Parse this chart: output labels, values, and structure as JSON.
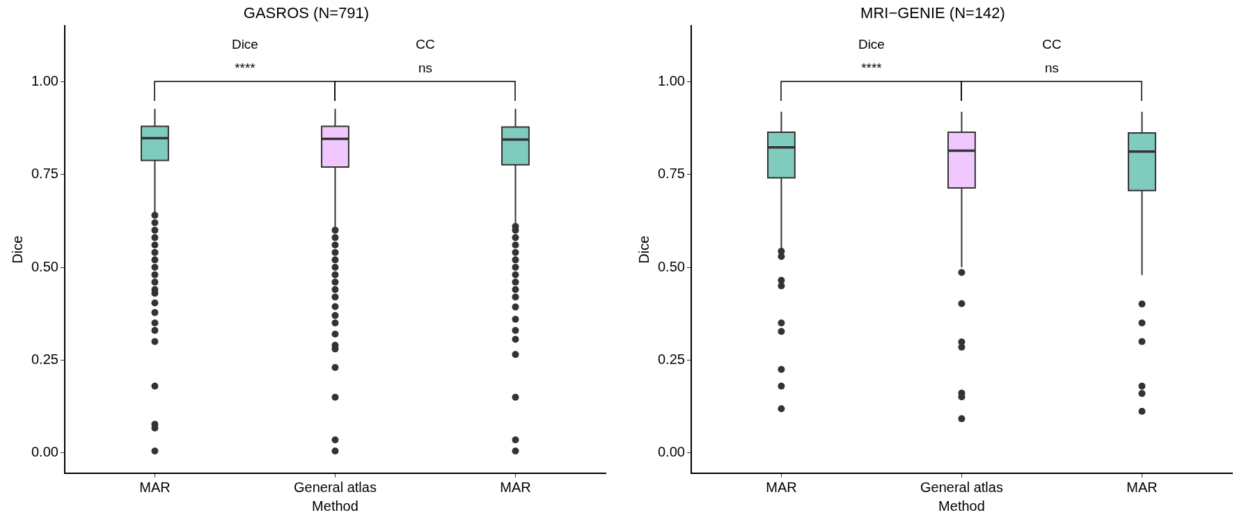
{
  "chart_data": [
    {
      "type": "box",
      "title": "GASROS (N=791)",
      "xlabel": "Method",
      "ylabel": "Dice",
      "categories": [
        "MAR",
        "General atlas",
        "MAR"
      ],
      "colors": [
        "#7fcbbe",
        "#f0c8ff",
        "#7fcbbe"
      ],
      "boxes": [
        {
          "low": 0.645,
          "q1": 0.788,
          "median": 0.848,
          "q3": 0.88,
          "high": 0.927,
          "outliers": [
            0.64,
            0.62,
            0.6,
            0.58,
            0.56,
            0.54,
            0.52,
            0.5,
            0.48,
            0.46,
            0.44,
            0.43,
            0.404,
            0.378,
            0.35,
            0.33,
            0.3,
            0.18,
            0.077,
            0.067,
            0.005
          ]
        },
        {
          "low": 0.605,
          "q1": 0.77,
          "median": 0.846,
          "q3": 0.88,
          "high": 0.927,
          "outliers": [
            0.6,
            0.58,
            0.56,
            0.54,
            0.52,
            0.5,
            0.48,
            0.46,
            0.44,
            0.42,
            0.394,
            0.37,
            0.35,
            0.32,
            0.29,
            0.28,
            0.23,
            0.15,
            0.035,
            0.005
          ]
        },
        {
          "low": 0.62,
          "q1": 0.776,
          "median": 0.844,
          "q3": 0.878,
          "high": 0.927,
          "outliers": [
            0.61,
            0.6,
            0.58,
            0.56,
            0.54,
            0.52,
            0.5,
            0.48,
            0.46,
            0.44,
            0.42,
            0.393,
            0.36,
            0.33,
            0.306,
            0.265,
            0.15,
            0.035,
            0.005
          ]
        }
      ],
      "ylim": [
        -0.055,
        1.15
      ],
      "yticks": [
        {
          "value": 0,
          "label": "0.00"
        },
        {
          "value": 0.25,
          "label": "0.25"
        },
        {
          "value": 0.5,
          "label": "0.50"
        },
        {
          "value": 0.75,
          "label": "0.75"
        },
        {
          "value": 1,
          "label": "1.00"
        }
      ],
      "grid": false,
      "legend": false,
      "annotations": [
        "Dice",
        "****",
        "CC",
        "ns"
      ]
    },
    {
      "type": "box",
      "title": "MRI−GENIE (N=142)",
      "xlabel": "Method",
      "ylabel": "Dice",
      "categories": [
        "MAR",
        "General atlas",
        "MAR"
      ],
      "colors": [
        "#7fcbbe",
        "#f0c8ff",
        "#7fcbbe"
      ],
      "boxes": [
        {
          "low": 0.543,
          "q1": 0.741,
          "median": 0.823,
          "q3": 0.864,
          "high": 0.919,
          "outliers": [
            0.543,
            0.529,
            0.465,
            0.45,
            0.35,
            0.327,
            0.225,
            0.18,
            0.119
          ]
        },
        {
          "low": 0.5,
          "q1": 0.714,
          "median": 0.814,
          "q3": 0.864,
          "high": 0.919,
          "outliers": [
            0.486,
            0.402,
            0.299,
            0.285,
            0.161,
            0.151,
            0.092
          ]
        },
        {
          "low": 0.479,
          "q1": 0.707,
          "median": 0.812,
          "q3": 0.862,
          "high": 0.919,
          "outliers": [
            0.401,
            0.35,
            0.3,
            0.18,
            0.16,
            0.112
          ]
        }
      ],
      "ylim": [
        -0.055,
        1.15
      ],
      "yticks": [
        {
          "value": 0,
          "label": "0.00"
        },
        {
          "value": 0.25,
          "label": "0.25"
        },
        {
          "value": 0.5,
          "label": "0.50"
        },
        {
          "value": 0.75,
          "label": "0.75"
        },
        {
          "value": 1,
          "label": "1.00"
        }
      ],
      "grid": false,
      "legend": false,
      "annotations": [
        "Dice",
        "****",
        "CC",
        "ns"
      ]
    }
  ]
}
